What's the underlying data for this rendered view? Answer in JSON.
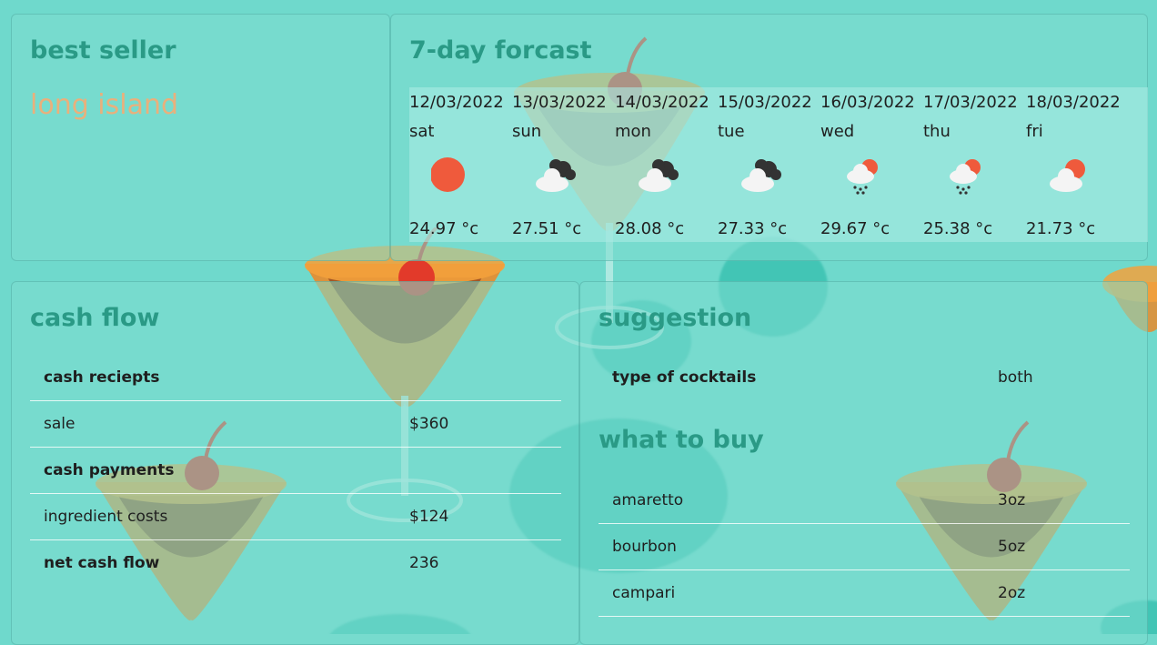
{
  "best_seller": {
    "title": "best seller",
    "value": "long island"
  },
  "forecast": {
    "title": "7-day forcast",
    "days": [
      {
        "date": "12/03/2022",
        "day": "sat",
        "temp": "24.97 °c",
        "icon": "sun-icon"
      },
      {
        "date": "13/03/2022",
        "day": "sun",
        "temp": "27.51 °c",
        "icon": "cloud-dark-icon"
      },
      {
        "date": "14/03/2022",
        "day": "mon",
        "temp": "28.08 °c",
        "icon": "cloud-dark-icon"
      },
      {
        "date": "15/03/2022",
        "day": "tue",
        "temp": "27.33 °c",
        "icon": "cloud-dark-icon"
      },
      {
        "date": "16/03/2022",
        "day": "wed",
        "temp": "29.67 °c",
        "icon": "rain-sun-icon"
      },
      {
        "date": "17/03/2022",
        "day": "thu",
        "temp": "25.38 °c",
        "icon": "rain-sun-icon"
      },
      {
        "date": "18/03/2022",
        "day": "fri",
        "temp": "21.73 °c",
        "icon": "cloud-sun-icon"
      }
    ]
  },
  "cash_flow": {
    "title": "cash flow",
    "rows": [
      {
        "label": "cash reciepts",
        "value": "",
        "bold": true
      },
      {
        "label": "sale",
        "value": "$360",
        "bold": false
      },
      {
        "label": "cash payments",
        "value": "",
        "bold": true
      },
      {
        "label": "ingredient costs",
        "value": "$124",
        "bold": false
      },
      {
        "label": "net cash flow",
        "value": "236",
        "bold": true
      }
    ]
  },
  "suggestion": {
    "title": "suggestion",
    "type_label": "type of cocktails",
    "type_value": "both"
  },
  "what_to_buy": {
    "title": "what to buy",
    "items": [
      {
        "name": "amaretto",
        "qty": "3oz"
      },
      {
        "name": "bourbon",
        "qty": "5oz"
      },
      {
        "name": "campari",
        "qty": "2oz"
      }
    ]
  },
  "colors": {
    "background": "#6fd9cc",
    "heading": "#2a9a86",
    "accent": "#e9b07c"
  }
}
